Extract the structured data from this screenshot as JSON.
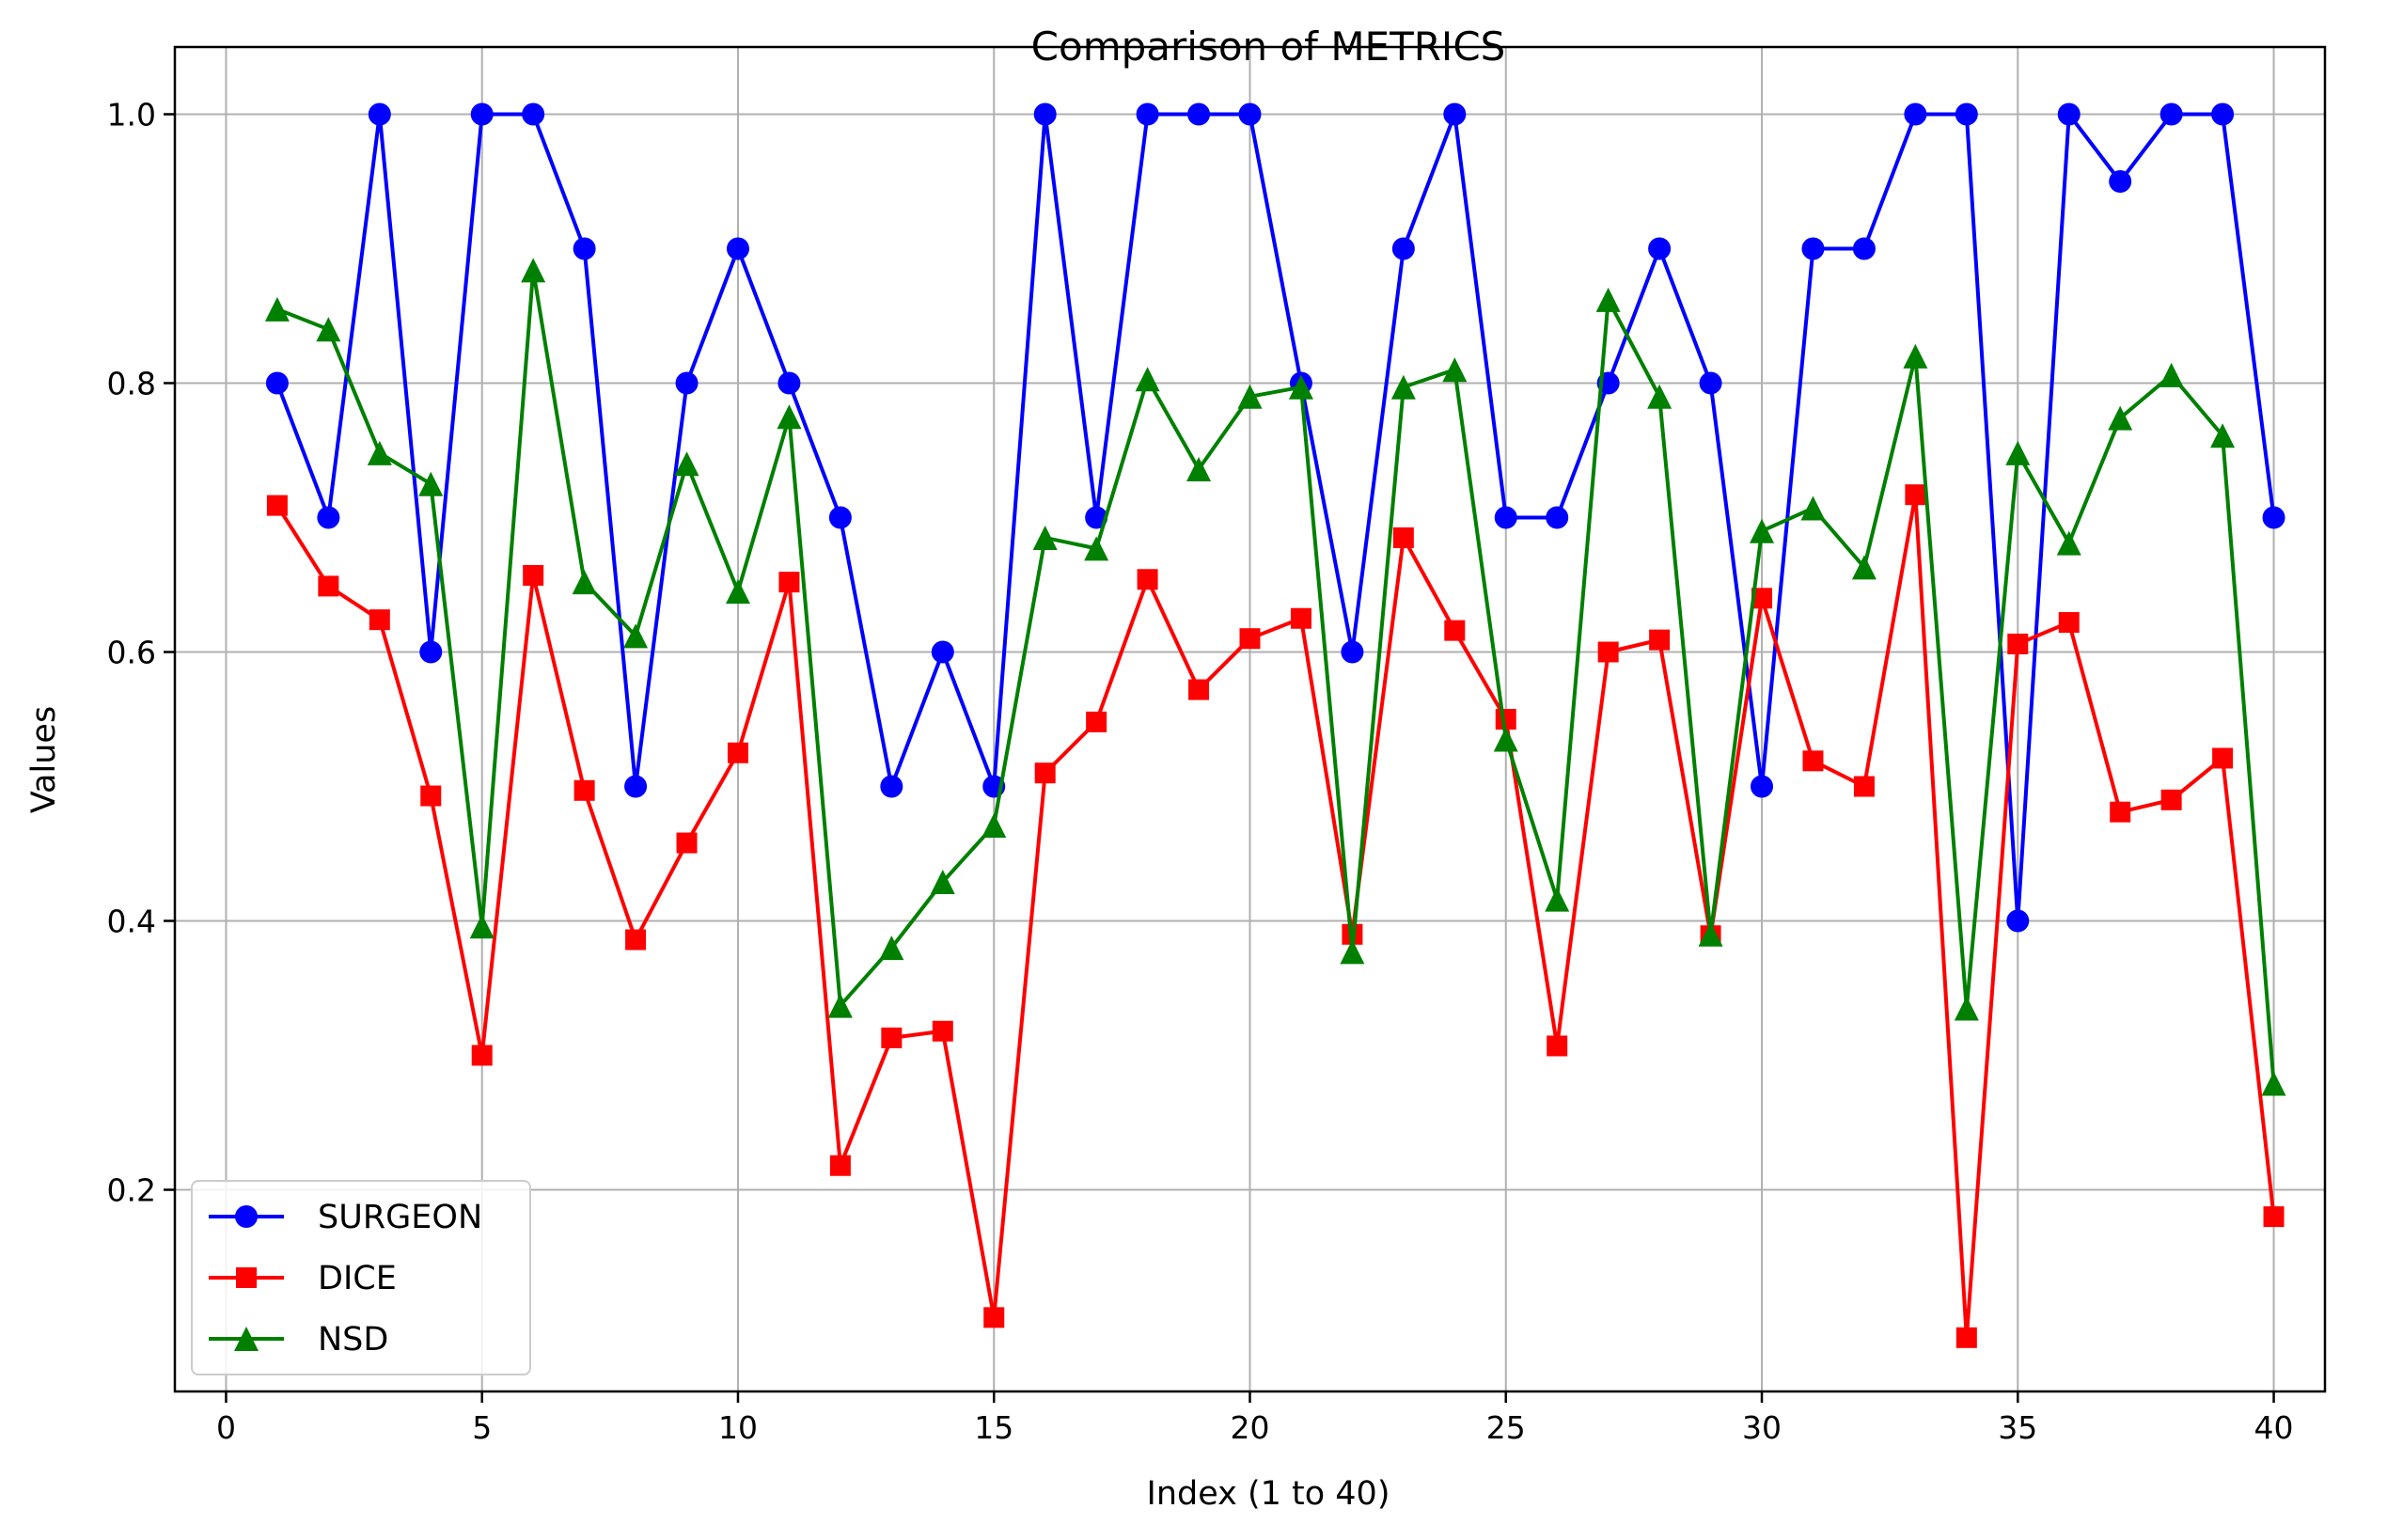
{
  "chart_data": {
    "type": "line",
    "title": "Comparison of METRICS",
    "xlabel": "Index (1 to 40)",
    "ylabel": "Values",
    "xlim": [
      -1,
      41
    ],
    "ylim": [
      0.05,
      1.05
    ],
    "xticks": [
      0,
      5,
      10,
      15,
      20,
      25,
      30,
      35,
      40
    ],
    "yticks": [
      0.2,
      0.4,
      0.6,
      0.8,
      1.0
    ],
    "xtick_labels": [
      "0",
      "5",
      "10",
      "15",
      "20",
      "25",
      "30",
      "35",
      "40"
    ],
    "ytick_labels": [
      "0.2",
      "0.4",
      "0.6",
      "0.8",
      "1.0"
    ],
    "grid": true,
    "legend_position": "bottom-left",
    "x": [
      1,
      2,
      3,
      4,
      5,
      6,
      7,
      8,
      9,
      10,
      11,
      12,
      13,
      14,
      15,
      16,
      17,
      18,
      19,
      20,
      21,
      22,
      23,
      24,
      25,
      26,
      27,
      28,
      29,
      30,
      31,
      32,
      33,
      34,
      35,
      36,
      37,
      38,
      39,
      40
    ],
    "series": [
      {
        "name": "SURGEON",
        "color": "#0000ff",
        "marker": "circle",
        "values": [
          0.8,
          0.7,
          1.0,
          0.6,
          1.0,
          1.0,
          0.9,
          0.5,
          0.8,
          0.9,
          0.8,
          0.7,
          0.5,
          0.6,
          0.5,
          1.0,
          0.7,
          1.0,
          1.0,
          1.0,
          0.8,
          0.6,
          0.9,
          1.0,
          0.7,
          0.7,
          0.8,
          0.9,
          0.8,
          0.5,
          0.9,
          0.9,
          1.0,
          1.0,
          0.4,
          1.0,
          0.95,
          1.0,
          1.0,
          0.7
        ]
      },
      {
        "name": "DICE",
        "color": "#ff0000",
        "marker": "square",
        "values": [
          0.709,
          0.649,
          0.624,
          0.493,
          0.3,
          0.657,
          0.497,
          0.386,
          0.458,
          0.525,
          0.652,
          0.218,
          0.313,
          0.318,
          0.105,
          0.51,
          0.548,
          0.654,
          0.572,
          0.61,
          0.625,
          0.39,
          0.685,
          0.616,
          0.55,
          0.307,
          0.6,
          0.609,
          0.389,
          0.64,
          0.519,
          0.5,
          0.717,
          0.09,
          0.606,
          0.622,
          0.481,
          0.49,
          0.521,
          0.18
        ]
      },
      {
        "name": "NSD",
        "color": "#008000",
        "marker": "triangle",
        "values": [
          0.855,
          0.84,
          0.748,
          0.725,
          0.396,
          0.884,
          0.652,
          0.612,
          0.74,
          0.645,
          0.775,
          0.337,
          0.38,
          0.429,
          0.471,
          0.685,
          0.677,
          0.803,
          0.736,
          0.79,
          0.797,
          0.377,
          0.797,
          0.81,
          0.535,
          0.416,
          0.862,
          0.79,
          0.39,
          0.69,
          0.707,
          0.663,
          0.82,
          0.335,
          0.748,
          0.681,
          0.774,
          0.806,
          0.761,
          0.279
        ]
      }
    ]
  }
}
